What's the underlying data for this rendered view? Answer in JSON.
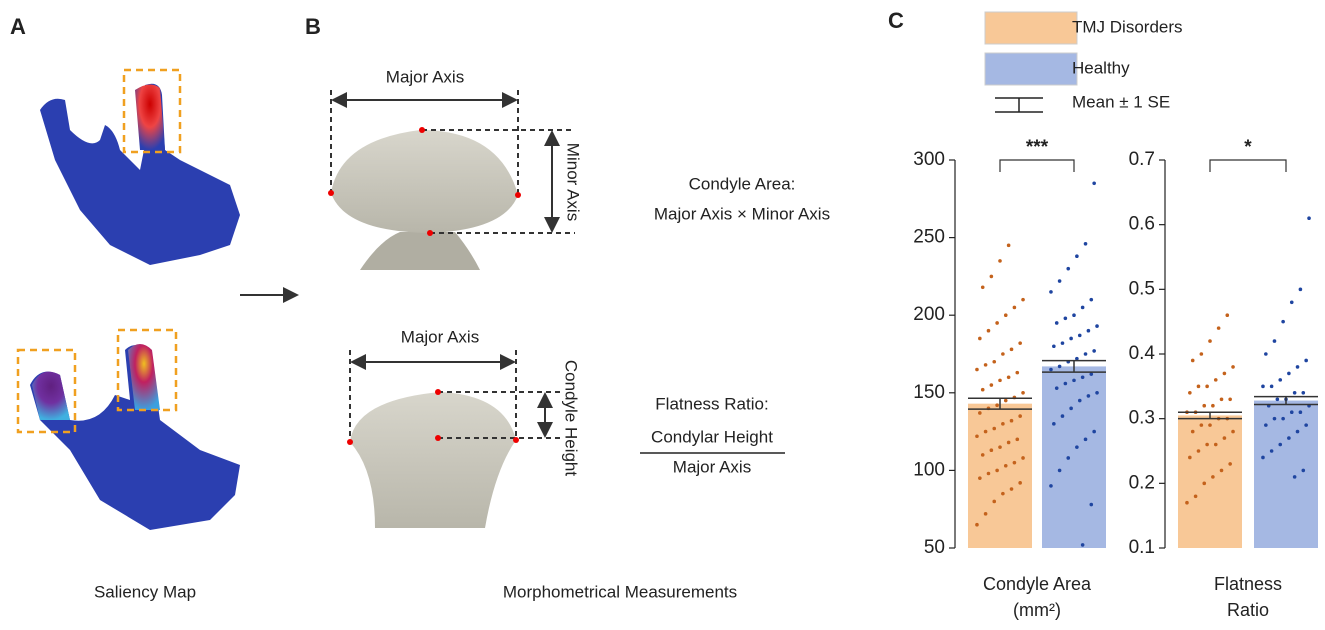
{
  "panel_a": {
    "letter": "A",
    "caption": "Saliency Map"
  },
  "panel_b": {
    "letter": "B",
    "caption": "Morphometrical Measurements",
    "top": {
      "major": "Major Axis",
      "minor": "Minor Axis",
      "formula_title": "Condyle Area:",
      "formula": "Major Axis × Minor Axis"
    },
    "bottom": {
      "major": "Major Axis",
      "height": "Condyle Height",
      "formula_title": "Flatness Ratio:",
      "numerator": "Condylar Height",
      "denominator": "Major Axis"
    }
  },
  "panel_c": {
    "letter": "C",
    "error_label": "Mean ± 1 SE"
  },
  "chart_data": [
    {
      "type": "bar",
      "xlabel_lines": [
        "Condyle Area",
        "(mm²)"
      ],
      "significance": "***",
      "ylim": [
        50,
        300
      ],
      "yticks": [
        50,
        100,
        150,
        200,
        250,
        300
      ],
      "series": [
        {
          "name": "TMJ Disorders",
          "color": "#f8c897",
          "point_color": "#c4621c",
          "mean": 143,
          "se": 3.5,
          "points": [
            65,
            72,
            80,
            85,
            88,
            92,
            95,
            98,
            100,
            103,
            105,
            108,
            110,
            113,
            115,
            118,
            120,
            122,
            125,
            127,
            130,
            132,
            135,
            137,
            140,
            142,
            145,
            147,
            150,
            152,
            155,
            158,
            160,
            163,
            165,
            168,
            170,
            175,
            178,
            182,
            185,
            190,
            195,
            200,
            205,
            210,
            218,
            225,
            235,
            245
          ]
        },
        {
          "name": "Healthy",
          "color": "#a5b8e3",
          "point_color": "#1f45a0",
          "mean": 167,
          "se": 3.7,
          "points": [
            52,
            78,
            90,
            100,
            108,
            115,
            120,
            125,
            130,
            135,
            140,
            145,
            148,
            150,
            153,
            156,
            158,
            160,
            162,
            165,
            167,
            170,
            172,
            175,
            177,
            180,
            182,
            185,
            187,
            190,
            193,
            195,
            198,
            200,
            205,
            210,
            215,
            222,
            230,
            238,
            246,
            285
          ]
        }
      ]
    },
    {
      "type": "bar",
      "xlabel_lines": [
        "Flatness",
        "Ratio"
      ],
      "significance": "*",
      "ylim": [
        0.1,
        0.7
      ],
      "yticks": [
        0.1,
        0.2,
        0.3,
        0.4,
        0.5,
        0.6,
        0.7
      ],
      "series": [
        {
          "color": "#f8c897",
          "point_color": "#c4621c",
          "mean": 0.305,
          "se": 0.005,
          "points": [
            0.17,
            0.18,
            0.2,
            0.21,
            0.22,
            0.23,
            0.24,
            0.25,
            0.26,
            0.26,
            0.27,
            0.28,
            0.28,
            0.29,
            0.29,
            0.3,
            0.3,
            0.31,
            0.31,
            0.32,
            0.32,
            0.33,
            0.33,
            0.34,
            0.35,
            0.35,
            0.36,
            0.37,
            0.38,
            0.39,
            0.4,
            0.42,
            0.44,
            0.46
          ]
        },
        {
          "color": "#a5b8e3",
          "point_color": "#1f45a0",
          "mean": 0.328,
          "se": 0.006,
          "points": [
            0.21,
            0.22,
            0.24,
            0.25,
            0.26,
            0.27,
            0.28,
            0.29,
            0.29,
            0.3,
            0.3,
            0.31,
            0.31,
            0.32,
            0.32,
            0.33,
            0.33,
            0.34,
            0.34,
            0.35,
            0.35,
            0.36,
            0.37,
            0.38,
            0.39,
            0.4,
            0.42,
            0.45,
            0.48,
            0.5,
            0.61
          ]
        }
      ]
    }
  ]
}
